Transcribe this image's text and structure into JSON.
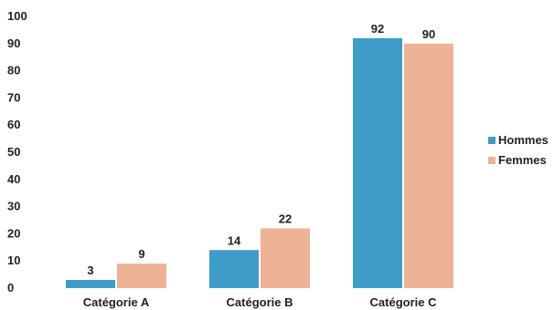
{
  "chart_data": {
    "type": "bar",
    "categories": [
      "Catégorie A",
      "Catégorie B",
      "Catégorie C"
    ],
    "series": [
      {
        "name": "Hommes",
        "values": [
          3,
          14,
          92
        ],
        "color": "#3f9bc7"
      },
      {
        "name": "Femmes",
        "values": [
          9,
          22,
          90
        ],
        "color": "#eeb296"
      }
    ],
    "ylim": [
      0,
      100
    ],
    "yticks": [
      "0",
      "10",
      "20",
      "30",
      "40",
      "50",
      "60",
      "70",
      "80",
      "90",
      "100"
    ],
    "legend_position": "right",
    "grid": false
  }
}
